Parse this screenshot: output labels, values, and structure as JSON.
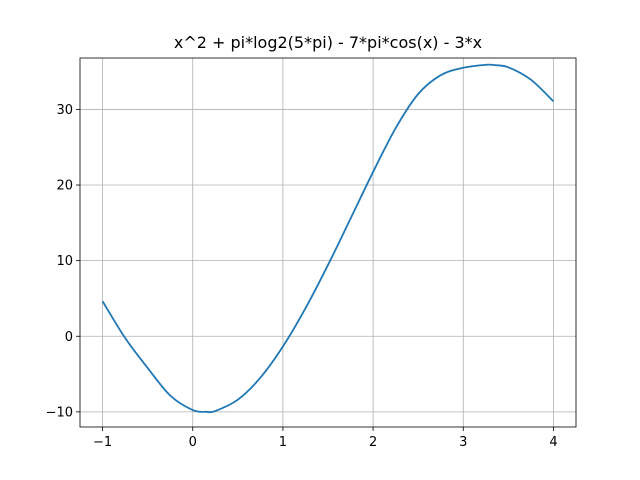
{
  "chart_data": {
    "type": "line",
    "title": "x^2 + pi*log2(5*pi) - 7*pi*cos(x) - 3*x",
    "xlabel": "",
    "ylabel": "",
    "xlim": [
      -1.25,
      4.25
    ],
    "ylim": [
      -12,
      36.8
    ],
    "xticks": [
      -1,
      0,
      1,
      2,
      3,
      4
    ],
    "xtick_labels": [
      "−1",
      "0",
      "1",
      "2",
      "3",
      "4"
    ],
    "yticks": [
      -10,
      0,
      10,
      20,
      30
    ],
    "ytick_labels": [
      "−10",
      "0",
      "10",
      "20",
      "30"
    ],
    "grid": true,
    "series": [
      {
        "color": "#1f77b4",
        "x": [
          -1.0,
          -0.75,
          -0.5,
          -0.25,
          0.0,
          0.15,
          0.25,
          0.5,
          0.75,
          1.0,
          1.25,
          1.5,
          1.75,
          2.0,
          2.25,
          2.5,
          2.75,
          3.0,
          3.25,
          3.35,
          3.5,
          3.75,
          4.0
        ],
        "y": [
          4.63,
          -0.22,
          -4.19,
          -7.83,
          -9.76,
          -9.99,
          -9.89,
          -8.39,
          -5.48,
          -1.36,
          3.69,
          9.43,
          15.56,
          21.73,
          27.52,
          32.04,
          34.53,
          35.51,
          35.9,
          35.86,
          35.57,
          33.93,
          31.06
        ]
      }
    ]
  }
}
